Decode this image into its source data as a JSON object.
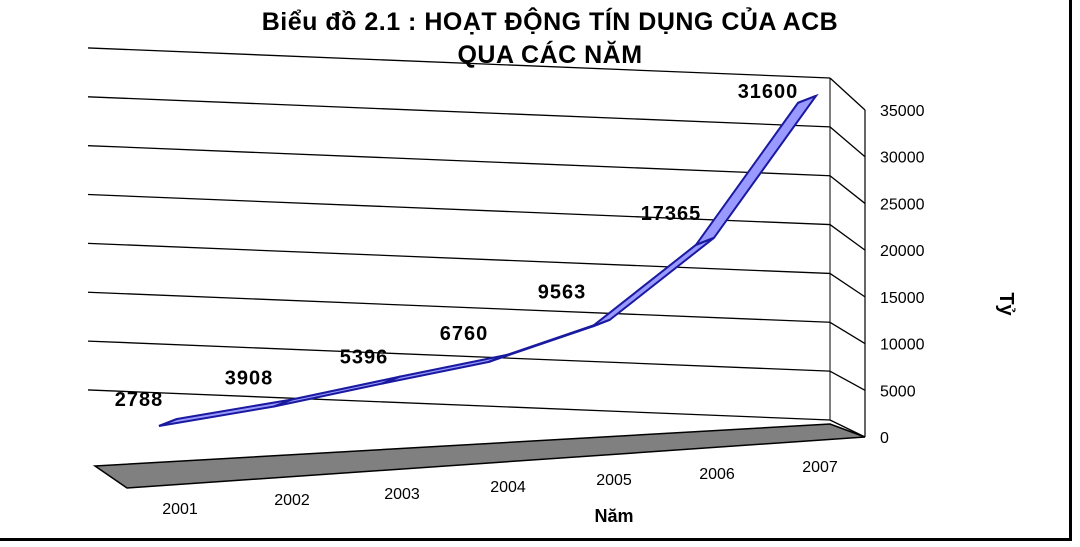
{
  "chart_data": {
    "type": "line",
    "title_line1": "Biểu đồ 2.1 : HOẠT ĐỘNG TÍN DỤNG CỦA ACB",
    "title_line2": "QUA CÁC NĂM",
    "xlabel": "Năm",
    "ylabel": "Tỷ",
    "categories": [
      "2001",
      "2002",
      "2003",
      "2004",
      "2005",
      "2006",
      "2007"
    ],
    "values": [
      2788,
      3908,
      5396,
      6760,
      9563,
      17365,
      31600
    ],
    "data_labels": [
      "2788",
      "3908",
      "5396",
      "6760",
      "9563",
      "17365",
      "31600"
    ],
    "ylim": [
      0,
      35000
    ],
    "yticks": [
      "0",
      "5000",
      "10000",
      "15000",
      "20000",
      "25000",
      "30000",
      "35000"
    ],
    "grid": true,
    "line_color": "#9999ff",
    "line_edge_color": "#1a1aa0",
    "floor_color": "#808080"
  }
}
